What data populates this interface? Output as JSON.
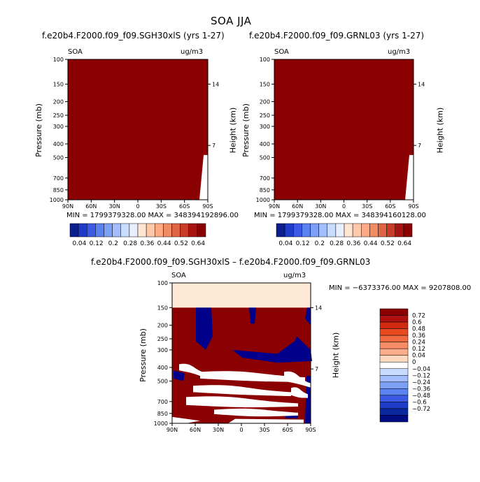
{
  "main_title": "SOA JJA",
  "panels": [
    {
      "subtitle": "f.e20b4.F2000.f09_f09.SGH30xlS (yrs 1-27)",
      "var_label": "SOA",
      "unit_label": "ug/m3",
      "ylabel": "Pressure (mb)",
      "y2label": "Height (km)",
      "minmax": "MIN = 1799379328.00    MAX = 348394192896.00",
      "fill_color": "#8b0000"
    },
    {
      "subtitle": "f.e20b4.F2000.f09_f09.GRNL03 (yrs 1-27)",
      "var_label": "SOA",
      "unit_label": "ug/m3",
      "ylabel": "Pressure (mb)",
      "y2label": "Height (km)",
      "minmax": "MIN = 1799379328.00    MAX = 348394160128.00",
      "fill_color": "#8b0000"
    },
    {
      "subtitle": "f.e20b4.F2000.f09_f09.SGH30xlS – f.e20b4.F2000.f09_f09.GRNL03",
      "var_label": "SOA",
      "unit_label": "ug/m3",
      "ylabel": "Pressure (mb)",
      "y2label": "Height (km)",
      "minmax": "MIN = −6373376.00    MAX = 9207808.00"
    }
  ],
  "chart_data": [
    {
      "type": "heatmap",
      "title": "f.e20b4.F2000.f09_f09.SGH30xlS (yrs 1-27)",
      "xticks": [
        "90N",
        "60N",
        "30N",
        "0",
        "30S",
        "60S",
        "90S"
      ],
      "yticks": [
        "100",
        "150",
        "200",
        "250",
        "300",
        "400",
        "500",
        "700",
        "850",
        "1000"
      ],
      "y2ticks": [
        "14",
        "7"
      ],
      "ylim": [
        100,
        1000
      ],
      "y_scale": "log",
      "field": "uniform 0.64+ (darkest red) everywhere"
    },
    {
      "type": "heatmap",
      "title": "f.e20b4.F2000.f09_f09.GRNL03 (yrs 1-27)",
      "xticks": [
        "90N",
        "60N",
        "30N",
        "0",
        "30S",
        "60S",
        "90S"
      ],
      "yticks": [
        "100",
        "150",
        "200",
        "250",
        "300",
        "400",
        "500",
        "700",
        "850",
        "1000"
      ],
      "y2ticks": [
        "14",
        "7"
      ],
      "ylim": [
        100,
        1000
      ],
      "y_scale": "log",
      "field": "uniform 0.64+ (darkest red) everywhere"
    },
    {
      "type": "heatmap",
      "title": "f.e20b4.F2000.f09_f09.SGH30xlS – f.e20b4.F2000.f09_f09.GRNL03",
      "xticks": [
        "90N",
        "60N",
        "30N",
        "0",
        "30S",
        "60S",
        "90S"
      ],
      "yticks": [
        "100",
        "150",
        "200",
        "250",
        "300",
        "400",
        "500",
        "700",
        "850",
        "1000"
      ],
      "y2ticks": [
        "14",
        "7"
      ],
      "ylim": [
        100,
        1000
      ],
      "y_scale": "log"
    }
  ],
  "colorbar_top": {
    "labels": [
      "0.04",
      "0.12",
      "0.2",
      "0.28",
      "0.36",
      "0.44",
      "0.52",
      "0.64"
    ],
    "colors": [
      "#0a1e8c",
      "#1e3cc8",
      "#3c5ae6",
      "#5a82f0",
      "#7ea0f4",
      "#a2beff",
      "#c8dcff",
      "#e8f0ff",
      "#ffe6d2",
      "#ffc8a8",
      "#ffaa82",
      "#f08c64",
      "#e06446",
      "#c83c28",
      "#a81414",
      "#8b0000"
    ]
  },
  "colorbar_diff": {
    "labels": [
      "0.72",
      "0.6",
      "0.48",
      "0.36",
      "0.24",
      "0.12",
      "0.04",
      "0",
      "−0.04",
      "−0.12",
      "−0.24",
      "−0.36",
      "−0.48",
      "−0.6",
      "−0.72"
    ],
    "colors": [
      "#8b0000",
      "#b01010",
      "#d02a10",
      "#e84a20",
      "#f06a40",
      "#f88c64",
      "#fcae8c",
      "#ffd8c0",
      "#ffffff",
      "#c8dcff",
      "#a2beff",
      "#7ea0f4",
      "#5a82f0",
      "#3c5ae6",
      "#1e3cc8",
      "#0a28a0",
      "#000a82"
    ]
  }
}
